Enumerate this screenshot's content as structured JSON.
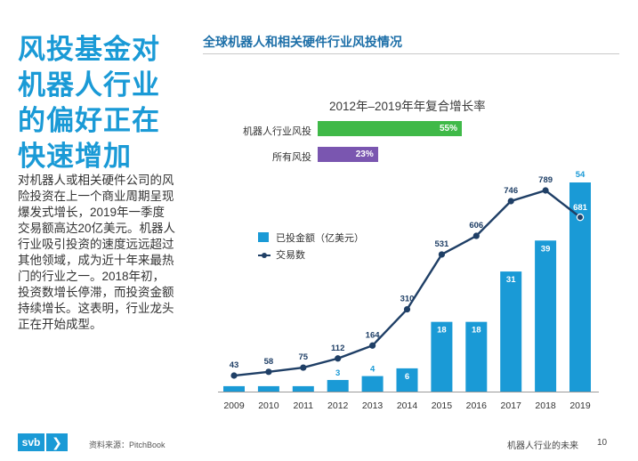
{
  "side": {
    "title": "风投基金对机器人行业的偏好正在快速增加",
    "body": "对机器人或相关硬件公司的风险投资在上一个商业周期呈现爆发式增长，2019年一季度交易额高达20亿美元。机器人行业吸引投资的速度远远超过其他领域，成为近十年来最热门的行业之一。2018年初，投资数增长停滞，而投资金额持续增长。这表明，行业龙头正在开始成型。"
  },
  "header": {
    "chart_title": "全球机器人和相关硬件行业风投情况"
  },
  "footer": {
    "logo": "svb",
    "chevron": "❯",
    "source": "资料来源：PitchBook",
    "right_text": "机器人行业的未来",
    "page": "10"
  },
  "colors": {
    "accent": "#1a9ad6",
    "navy": "#1f3f66",
    "green": "#3fb948",
    "purple": "#7a56b0"
  },
  "chart_data": [
    {
      "type": "bar",
      "orientation": "horizontal",
      "title": "2012年–2019年年复合增长率",
      "categories": [
        "机器人行业风投",
        "所有风投"
      ],
      "values": [
        55,
        23
      ],
      "value_labels": [
        "55%",
        "23%"
      ],
      "unit": "%"
    },
    {
      "type": "bar+line",
      "x": [
        "2009",
        "2010",
        "2011",
        "2012",
        "2013",
        "2014",
        "2015",
        "2016",
        "2017",
        "2018",
        "2019"
      ],
      "series": [
        {
          "name": "已投金额（亿美元）",
          "type": "bar",
          "values": [
            null,
            null,
            null,
            3,
            4,
            6,
            18,
            18,
            31,
            39,
            54
          ],
          "labels": [
            "",
            "",
            "",
            "3",
            "4",
            "6",
            "18",
            "18",
            "31",
            "39",
            "54"
          ]
        },
        {
          "name": "交易数",
          "type": "line",
          "values": [
            43,
            58,
            75,
            112,
            164,
            310,
            531,
            606,
            746,
            789,
            681
          ],
          "labels": [
            "43",
            "58",
            "75",
            "112",
            "164",
            "310",
            "531",
            "606",
            "746",
            "789",
            "681"
          ]
        }
      ],
      "legend_position": "top-left",
      "grid": false
    }
  ]
}
